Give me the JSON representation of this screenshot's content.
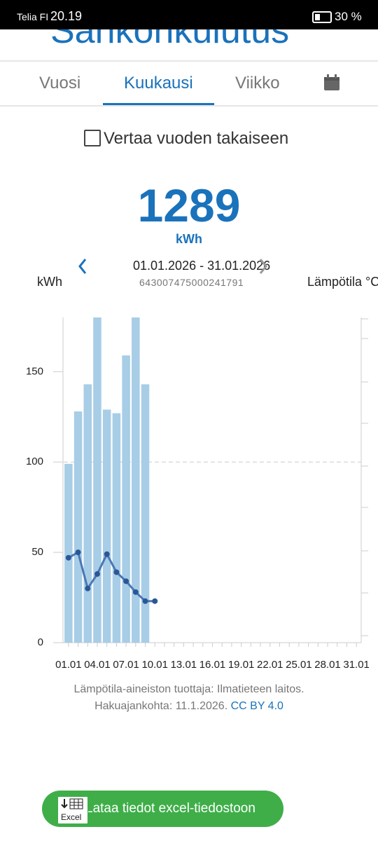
{
  "status_bar": {
    "carrier": "Telia FI",
    "time": "20.19",
    "battery": "30 %"
  },
  "header": {
    "title": "Sähkönkulutus"
  },
  "tabs": [
    "Vuosi",
    "Kuukausi",
    "Viikko"
  ],
  "compare_label": "Vertaa vuoden takaiseen",
  "total": {
    "value": "1289",
    "unit": "kWh"
  },
  "period": "01.01.2026 - 31.01.2026",
  "meter_id": "643007475000241791",
  "chart_data": {
    "type": "bar",
    "y_label": "kWh",
    "y2_label": "Lämpötila °C",
    "categories": [
      "01.01",
      null,
      null,
      "04.01",
      null,
      null,
      "07.01",
      null,
      null,
      "10.01",
      null,
      null,
      "13.01",
      null,
      null,
      "16.01",
      null,
      null,
      "19.01",
      null,
      null,
      "22.01",
      null,
      null,
      "25.01",
      null,
      null,
      "28.01",
      null,
      null,
      "31.01"
    ],
    "ylim": [
      0,
      180
    ],
    "yticks": [
      0,
      50,
      100,
      150
    ],
    "series": [
      {
        "type": "bar",
        "color": "#a8cde6",
        "values": [
          99,
          128,
          143,
          180,
          129,
          127,
          159,
          180,
          143,
          null,
          null,
          null,
          null,
          null,
          null,
          null,
          null,
          null,
          null,
          null,
          null,
          null,
          null,
          null,
          null,
          null,
          null,
          null,
          null,
          null,
          null
        ]
      },
      {
        "type": "line",
        "color": "#4a78b5",
        "values": [
          47,
          50,
          30,
          38,
          49,
          39,
          34,
          28,
          23,
          23,
          null,
          null,
          null,
          null,
          null,
          null,
          null,
          null,
          null,
          null,
          null,
          null,
          null,
          null,
          null,
          null,
          null,
          null,
          null,
          null,
          null
        ]
      }
    ]
  },
  "footer": {
    "source": "Lämpötila-aineiston tuottaja: Ilmatieteen laitos.",
    "fetched": "Hakuajankohta: 11.1.2026.",
    "license": "CC BY 4.0"
  },
  "download_button": {
    "label": "Lataa tiedot excel-tiedostoon",
    "icon_text": "Excel"
  }
}
